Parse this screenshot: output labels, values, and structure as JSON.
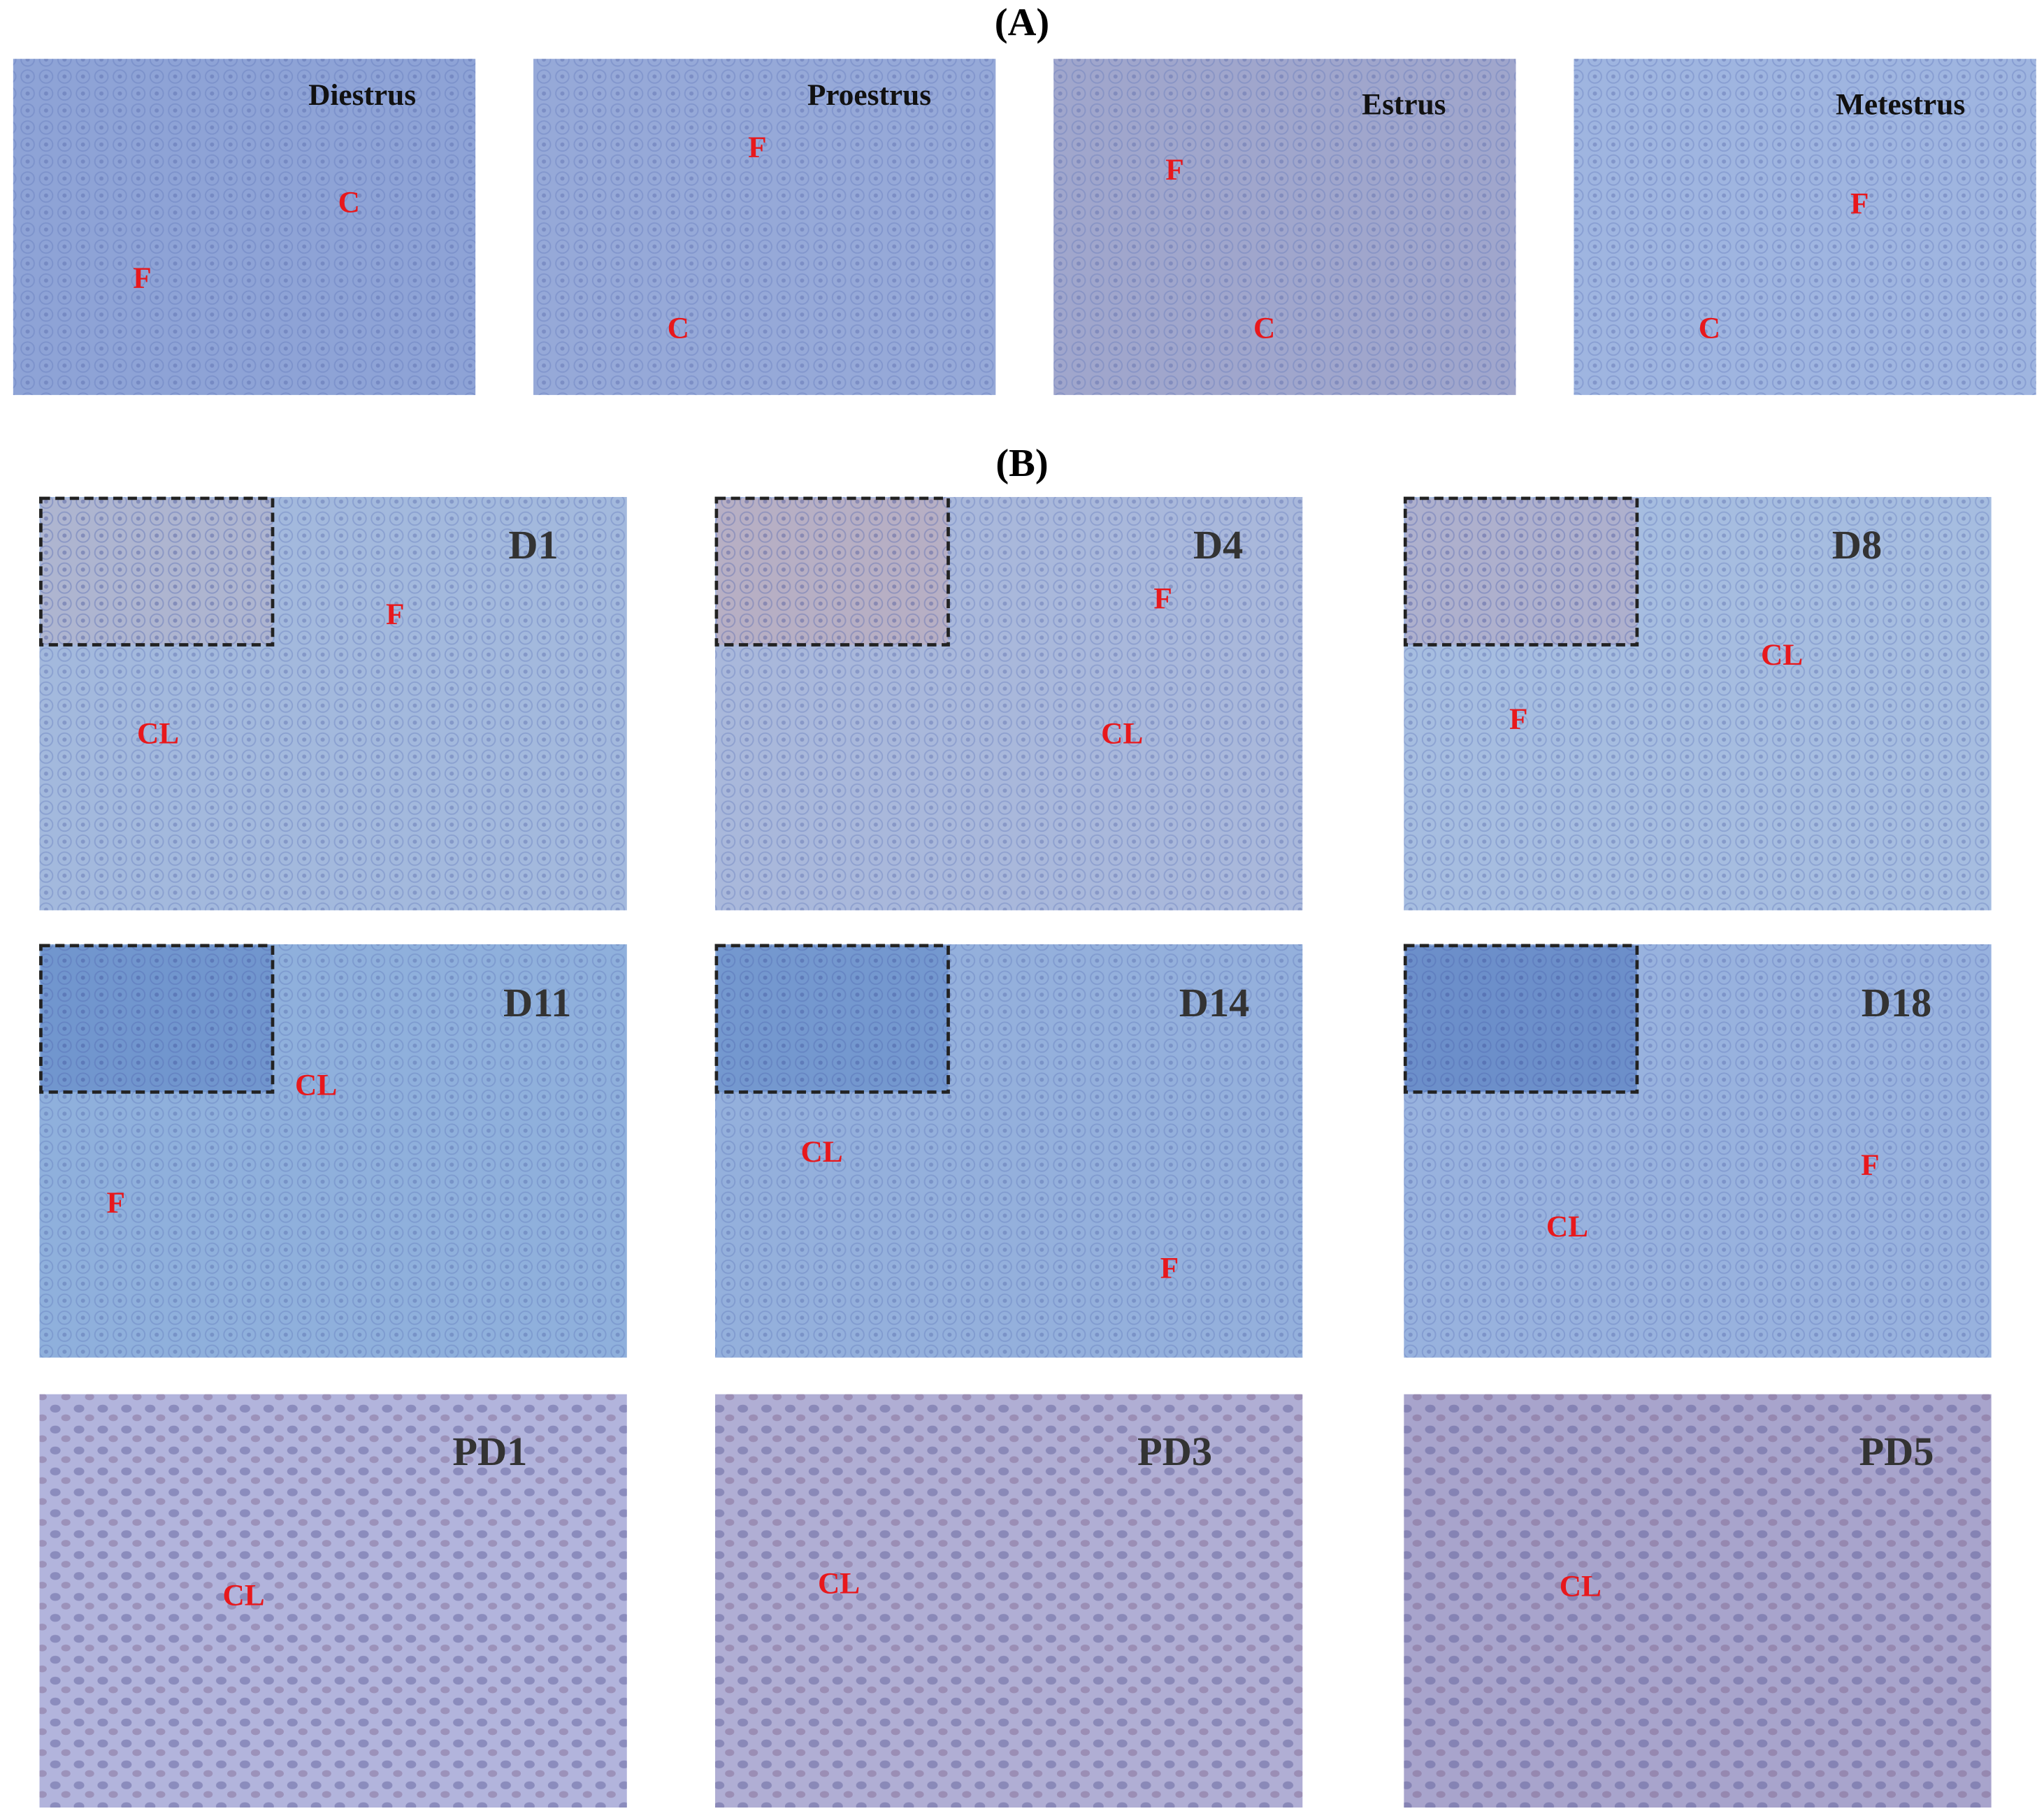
{
  "panel_a": {
    "label": "(A)",
    "images": [
      {
        "title": "Diestrus",
        "markers": [
          "F",
          "C"
        ]
      },
      {
        "title": "Proestrus",
        "markers": [
          "F",
          "C"
        ]
      },
      {
        "title": "Estrus",
        "markers": [
          "F",
          "C"
        ]
      },
      {
        "title": "Metestrus",
        "markers": [
          "F",
          "C"
        ]
      }
    ]
  },
  "panel_b": {
    "label": "(B)",
    "images": [
      {
        "title": "D1",
        "markers": [
          "F",
          "CL"
        ]
      },
      {
        "title": "D4",
        "markers": [
          "F",
          "CL"
        ]
      },
      {
        "title": "D8",
        "markers": [
          "CL",
          "F"
        ]
      },
      {
        "title": "D11",
        "markers": [
          "CL",
          "F"
        ]
      },
      {
        "title": "D14",
        "markers": [
          "CL",
          "F"
        ]
      },
      {
        "title": "D18",
        "markers": [
          "F",
          "CL"
        ]
      },
      {
        "title": "PD1",
        "markers": [
          "CL"
        ]
      },
      {
        "title": "PD3",
        "markers": [
          "CL"
        ]
      },
      {
        "title": "PD5",
        "markers": [
          "CL"
        ]
      }
    ]
  }
}
